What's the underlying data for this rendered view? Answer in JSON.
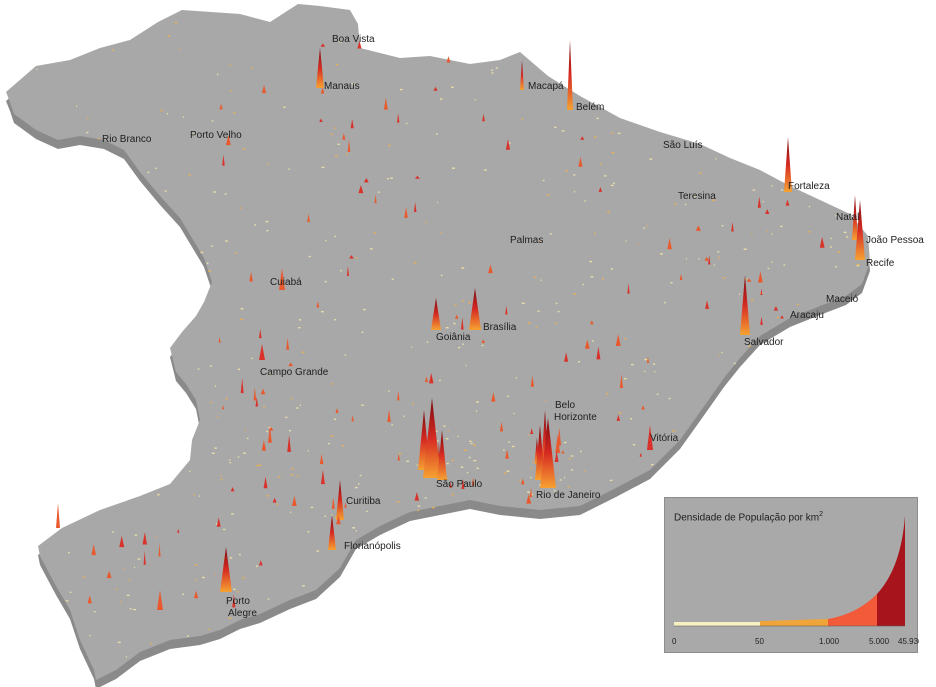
{
  "map": {
    "base_color": "#a8a8a8",
    "side_color": "#8a8a8a",
    "cities": [
      {
        "name": "Boa Vista"
      },
      {
        "name": "Manaus"
      },
      {
        "name": "Macapá"
      },
      {
        "name": "Belém"
      },
      {
        "name": "Rio Branco"
      },
      {
        "name": "Porto Velho"
      },
      {
        "name": "São Luís"
      },
      {
        "name": "Fortaleza"
      },
      {
        "name": "Teresina"
      },
      {
        "name": "Natal"
      },
      {
        "name": "João Pessoa"
      },
      {
        "name": "Recife"
      },
      {
        "name": "Palmas"
      },
      {
        "name": "Cuiabá"
      },
      {
        "name": "Maceió"
      },
      {
        "name": "Aracaju"
      },
      {
        "name": "Brasília"
      },
      {
        "name": "Goiânia"
      },
      {
        "name": "Salvador"
      },
      {
        "name": "Campo Grande"
      },
      {
        "name": "Belo Horizonte"
      },
      {
        "name": "Vitória"
      },
      {
        "name": "São Paulo"
      },
      {
        "name": "Rio de Janeiro"
      },
      {
        "name": "Curitiba"
      },
      {
        "name": "Florianópolis"
      },
      {
        "name": "Porto Alegre"
      }
    ]
  },
  "legend": {
    "title": "Densidade de População por km",
    "title_superscript": "2",
    "ticks": [
      "0",
      "50",
      "1.000",
      "5.000",
      "45.936"
    ],
    "classes": [
      {
        "from": 0,
        "to": 50,
        "color": "#f7f0c2"
      },
      {
        "from": 50,
        "to": 1000,
        "color": "#f0a53a"
      },
      {
        "from": 1000,
        "to": 5000,
        "color": "#f25a3a"
      },
      {
        "from": 5000,
        "to": 45936,
        "color": "#a8141b"
      }
    ]
  }
}
